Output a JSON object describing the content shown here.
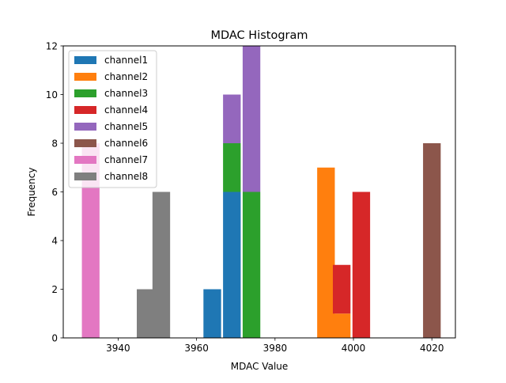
{
  "chart_data": {
    "type": "bar",
    "stacked": true,
    "title": "MDAC Histogram",
    "xlabel": "MDAC Value",
    "ylabel": "Frequency",
    "xlim": [
      3926,
      4026
    ],
    "ylim": [
      0,
      12
    ],
    "xticks": [
      3940,
      3960,
      3980,
      4000,
      4020
    ],
    "yticks": [
      0,
      2,
      4,
      6,
      8,
      10,
      12
    ],
    "bin_width": 4.5,
    "legend_position": "upper-left",
    "series": [
      {
        "name": "channel1",
        "color": "#1f77b4",
        "bars": [
          {
            "x": 3964,
            "value": 2
          },
          {
            "x": 3969,
            "value": 6
          }
        ]
      },
      {
        "name": "channel2",
        "color": "#ff7f0e",
        "bars": [
          {
            "x": 3993,
            "value": 7
          },
          {
            "x": 3997,
            "value": 1
          }
        ]
      },
      {
        "name": "channel3",
        "color": "#2ca02c",
        "bars": [
          {
            "x": 3969,
            "value": 2
          },
          {
            "x": 3974,
            "value": 6
          }
        ]
      },
      {
        "name": "channel4",
        "color": "#d62728",
        "bars": [
          {
            "x": 3997,
            "value": 2
          },
          {
            "x": 4002,
            "value": 6
          }
        ]
      },
      {
        "name": "channel5",
        "color": "#9467bd",
        "bars": [
          {
            "x": 3969,
            "value": 2
          },
          {
            "x": 3974,
            "value": 6
          }
        ]
      },
      {
        "name": "channel6",
        "color": "#8c564b",
        "bars": [
          {
            "x": 4020,
            "value": 8
          }
        ]
      },
      {
        "name": "channel7",
        "color": "#e377c2",
        "bars": [
          {
            "x": 3933,
            "value": 8
          }
        ]
      },
      {
        "name": "channel8",
        "color": "#7f7f7f",
        "bars": [
          {
            "x": 3947,
            "value": 2
          },
          {
            "x": 3951,
            "value": 6
          }
        ]
      }
    ]
  }
}
